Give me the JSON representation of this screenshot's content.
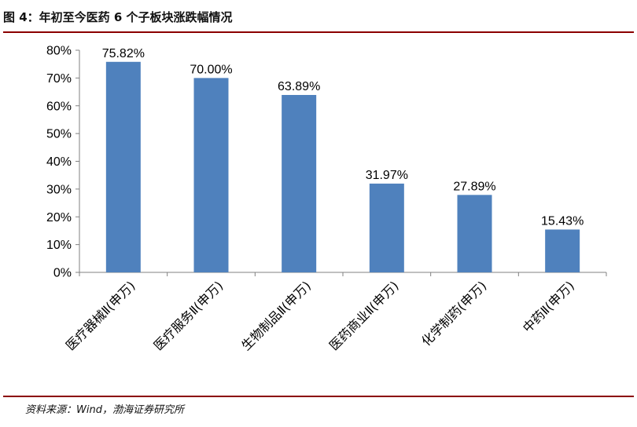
{
  "header": {
    "title": "图 4：年初至今医药 6 个子板块涨跌幅情况"
  },
  "footer": {
    "source": "资料来源：Wind，渤海证券研究所"
  },
  "chart_data": {
    "type": "bar",
    "title": "",
    "xlabel": "",
    "ylabel": "",
    "categories": [
      "医疗器械Ⅱ(申万)",
      "医疗服务Ⅱ(申万)",
      "生物制品Ⅱ(申万)",
      "医药商业Ⅱ(申万)",
      "化学制药(申万)",
      "中药Ⅱ(申万)"
    ],
    "values": [
      75.82,
      70.0,
      63.89,
      31.97,
      27.89,
      15.43
    ],
    "data_labels": [
      "75.82%",
      "70.00%",
      "63.89%",
      "31.97%",
      "27.89%",
      "15.43%"
    ],
    "ylim": [
      0,
      80
    ],
    "yticks": [
      0,
      10,
      20,
      30,
      40,
      50,
      60,
      70,
      80
    ],
    "ytick_labels": [
      "0%",
      "10%",
      "20%",
      "30%",
      "40%",
      "50%",
      "60%",
      "70%",
      "80%"
    ],
    "grid": false,
    "legend": "none",
    "bar_color": "#4f81bd"
  }
}
